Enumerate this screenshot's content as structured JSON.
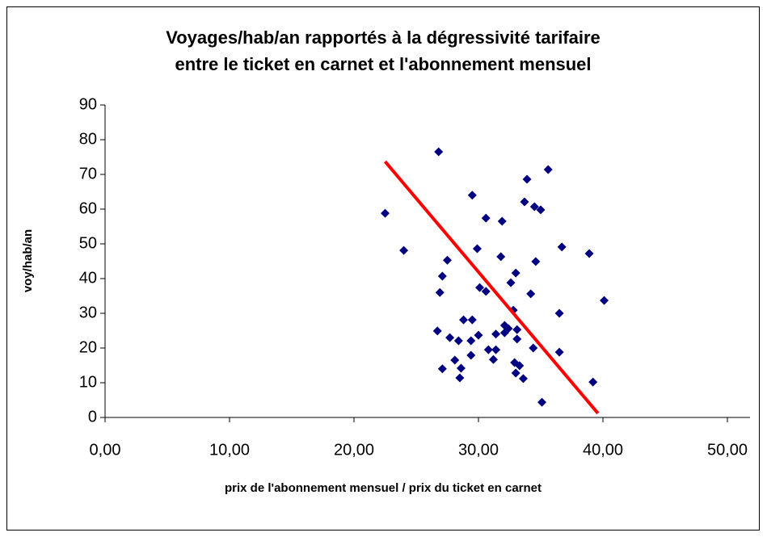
{
  "chart_data": {
    "type": "scatter",
    "title": "Voyages/hab/an rapportés à la dégressivité tarifaire",
    "subtitle": "entre le ticket en carnet et l'abonnement mensuel",
    "x_label": "prix de l'abonnement mensuel / prix du ticket en carnet",
    "y_label": "voy/hab/an",
    "xlim": [
      0,
      50
    ],
    "ylim": [
      0,
      90
    ],
    "xticks": [
      {
        "value": 0,
        "label": "0,00"
      },
      {
        "value": 10,
        "label": "10,00"
      },
      {
        "value": 20,
        "label": "20,00"
      },
      {
        "value": 30,
        "label": "30,00"
      },
      {
        "value": 40,
        "label": "40,00"
      },
      {
        "value": 50,
        "label": "50,00"
      }
    ],
    "yticks": [
      0,
      10,
      20,
      30,
      40,
      50,
      60,
      70,
      80,
      90
    ],
    "series": [
      {
        "color": "#000080",
        "x": [
          22.5,
          24.0,
          26.8,
          26.7,
          26.9,
          27.1,
          27.5,
          27.1,
          27.7,
          28.1,
          28.4,
          28.5,
          28.6,
          28.8,
          29.4,
          29.5,
          29.4,
          29.5,
          30.0,
          29.9,
          30.1,
          30.6,
          30.6,
          30.8,
          31.2,
          31.4,
          31.4,
          31.8,
          31.9,
          32.1,
          32.1,
          32.4,
          32.6,
          32.8,
          33.0,
          33.1,
          33.1,
          32.9,
          33.0,
          33.3,
          33.6,
          33.7,
          34.2,
          33.9,
          34.4,
          34.5,
          34.6,
          35.0,
          35.1,
          35.6,
          36.5,
          36.5,
          36.7,
          38.9,
          39.2,
          40.1
        ],
        "values": [
          58.8,
          48.1,
          76.5,
          24.9,
          36.0,
          40.7,
          45.3,
          14.0,
          23.0,
          16.5,
          22.1,
          11.4,
          14.2,
          28.1,
          22.1,
          28.1,
          17.9,
          64.0,
          23.7,
          48.6,
          37.4,
          57.4,
          36.3,
          19.5,
          16.7,
          24.0,
          19.5,
          46.3,
          56.5,
          24.4,
          26.5,
          25.6,
          38.8,
          30.9,
          41.6,
          25.3,
          22.6,
          15.8,
          12.8,
          14.9,
          11.2,
          62.1,
          35.6,
          68.6,
          20.0,
          60.7,
          44.9,
          59.8,
          4.4,
          71.4,
          30.0,
          18.8,
          49.1,
          47.2,
          10.2,
          33.7
        ]
      }
    ],
    "trendline": {
      "color": "#ff0000",
      "x": [
        22.5,
        39.6
      ],
      "values": [
        73.7,
        1.2
      ]
    }
  }
}
